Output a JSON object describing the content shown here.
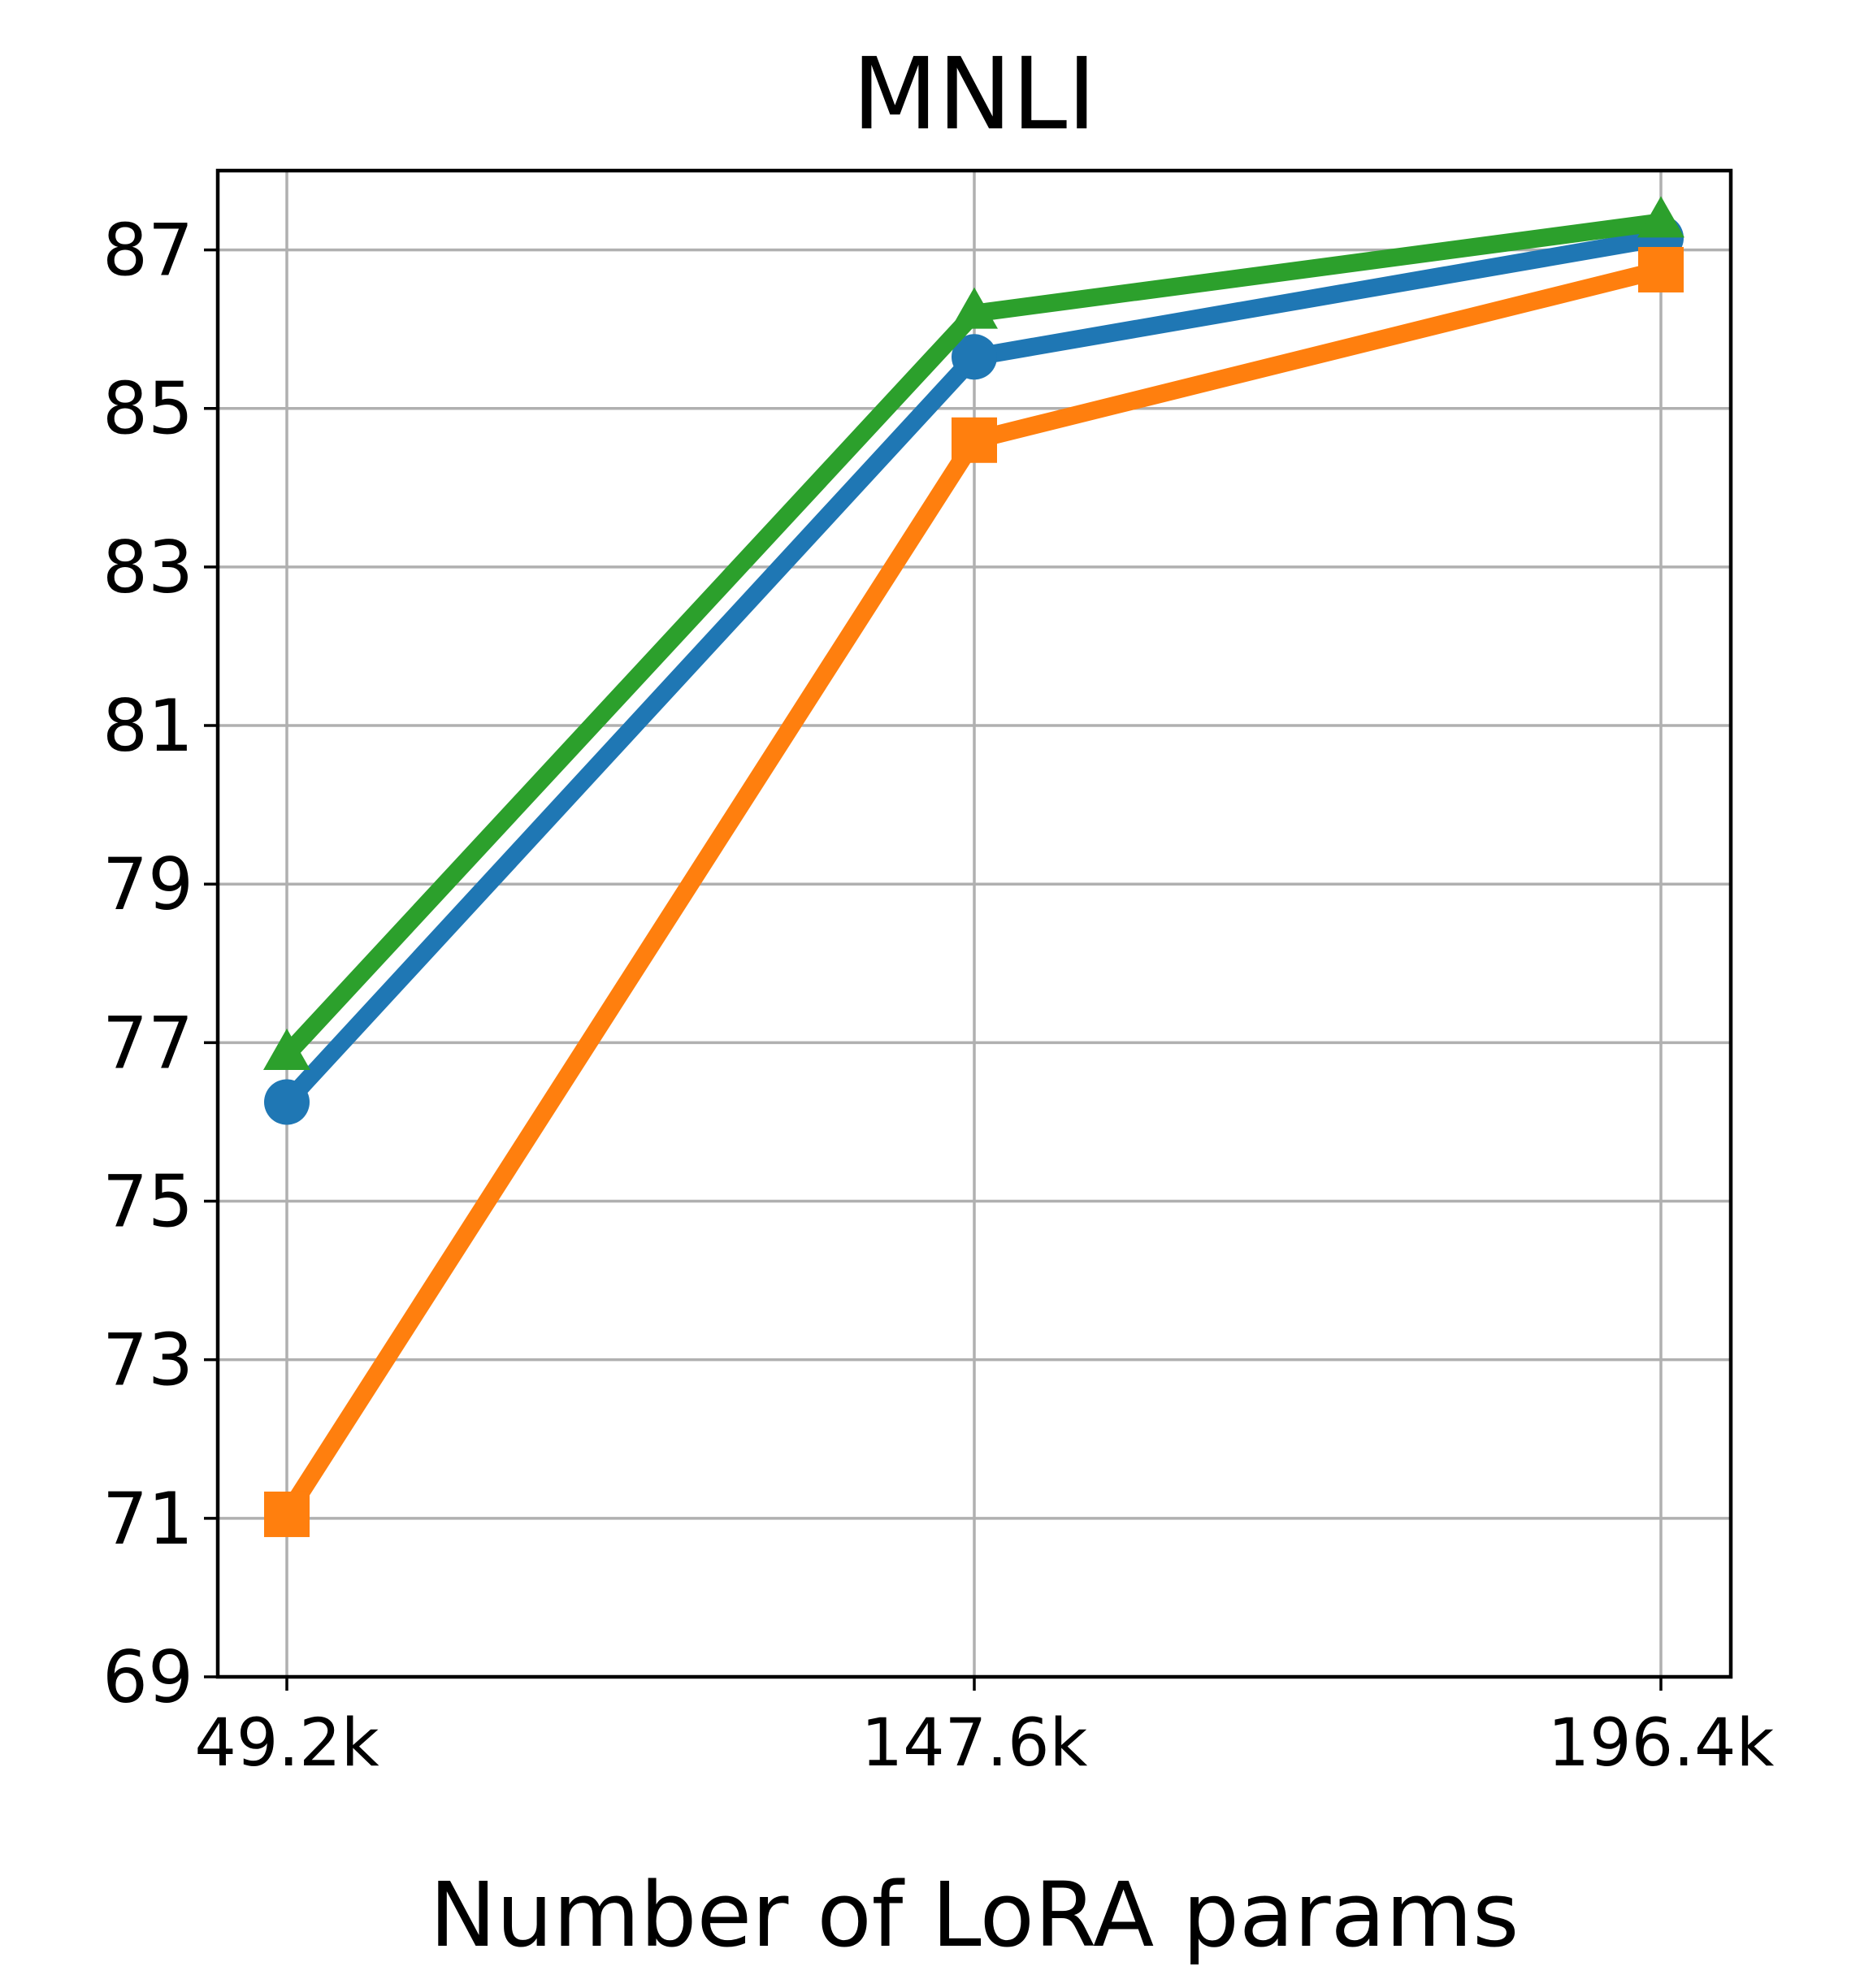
{
  "chart_data": {
    "type": "line",
    "title": "MNLI",
    "xlabel": "Number of LoRA params",
    "ylabel": "",
    "x": [
      49.2,
      147.6,
      196.4
    ],
    "categories": [
      "49.2k",
      "147.6k",
      "196.4k"
    ],
    "ylim": [
      69,
      88
    ],
    "yticks": [
      69,
      71,
      73,
      75,
      77,
      79,
      81,
      83,
      85,
      87
    ],
    "grid": true,
    "series": [
      {
        "name": "blue-series",
        "color": "#1f77b4",
        "marker": "circle",
        "values": [
          76.25,
          85.65,
          87.15
        ]
      },
      {
        "name": "orange-series",
        "color": "#ff7f0e",
        "marker": "square",
        "values": [
          71.05,
          84.6,
          86.75
        ]
      },
      {
        "name": "green-series",
        "color": "#2ca02c",
        "marker": "triangle",
        "values": [
          76.85,
          86.2,
          87.35
        ]
      }
    ]
  }
}
